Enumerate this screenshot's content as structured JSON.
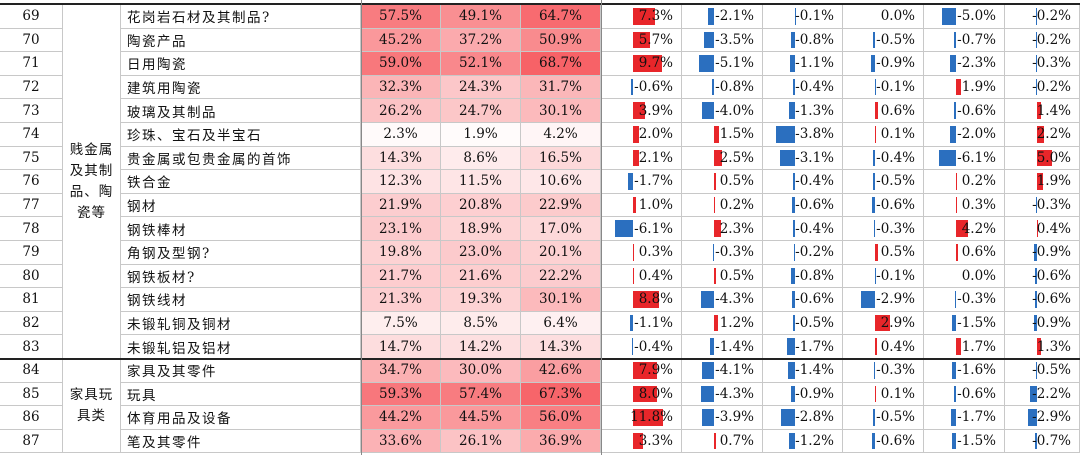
{
  "colors": {
    "pos": "#e8262a",
    "neg": "#2b6fbf"
  },
  "categories": [
    {
      "label": "贱金属及其制品、陶瓷等",
      "first_row": 0,
      "row_count": 15
    },
    {
      "label": "家具玩具类",
      "first_row": 15,
      "row_count": 4
    }
  ],
  "rows": [
    {
      "idx": "69",
      "name": "花岗岩石材及其制品?",
      "p1": "57.5%",
      "p2": "49.1%",
      "p3": "64.7%",
      "c": [
        "7.3%",
        "-2.1%",
        "-0.1%",
        "0.0%",
        "-5.0%",
        "-0.2%"
      ]
    },
    {
      "idx": "70",
      "name": "陶瓷产品",
      "p1": "45.2%",
      "p2": "37.2%",
      "p3": "50.9%",
      "c": [
        "5.7%",
        "-3.5%",
        "-0.8%",
        "-0.5%",
        "-0.7%",
        "-0.2%"
      ]
    },
    {
      "idx": "71",
      "name": "日用陶瓷",
      "p1": "59.0%",
      "p2": "52.1%",
      "p3": "68.7%",
      "c": [
        "9.7%",
        "-5.1%",
        "-1.1%",
        "-0.9%",
        "-2.3%",
        "-0.3%"
      ]
    },
    {
      "idx": "72",
      "name": "建筑用陶瓷",
      "p1": "32.3%",
      "p2": "24.3%",
      "p3": "31.7%",
      "c": [
        "-0.6%",
        "-0.8%",
        "-0.4%",
        "-0.1%",
        "1.9%",
        "-0.2%"
      ]
    },
    {
      "idx": "73",
      "name": "玻璃及其制品",
      "p1": "26.2%",
      "p2": "24.7%",
      "p3": "30.1%",
      "c": [
        "3.9%",
        "-4.0%",
        "-1.3%",
        "0.6%",
        "-0.6%",
        "1.4%"
      ]
    },
    {
      "idx": "74",
      "name": "珍珠、宝石及半宝石",
      "p1": "2.3%",
      "p2": "1.9%",
      "p3": "4.2%",
      "c": [
        "2.0%",
        "1.5%",
        "-3.8%",
        "0.1%",
        "-2.0%",
        "2.2%"
      ]
    },
    {
      "idx": "75",
      "name": "贵金属或包贵金属的首饰",
      "p1": "14.3%",
      "p2": "8.6%",
      "p3": "16.5%",
      "c": [
        "2.1%",
        "2.5%",
        "-3.1%",
        "-0.4%",
        "-6.1%",
        "5.0%"
      ]
    },
    {
      "idx": "76",
      "name": "铁合金",
      "p1": "12.3%",
      "p2": "11.5%",
      "p3": "10.6%",
      "c": [
        "-1.7%",
        "0.5%",
        "-0.4%",
        "-0.5%",
        "0.2%",
        "1.9%"
      ]
    },
    {
      "idx": "77",
      "name": "钢材",
      "p1": "21.9%",
      "p2": "20.8%",
      "p3": "22.9%",
      "c": [
        "1.0%",
        "0.2%",
        "-0.6%",
        "-0.6%",
        "0.3%",
        "-0.3%"
      ]
    },
    {
      "idx": "78",
      "name": "钢铁棒材",
      "p1": "23.1%",
      "p2": "18.9%",
      "p3": "17.0%",
      "c": [
        "-6.1%",
        "2.3%",
        "-0.4%",
        "-0.3%",
        "4.2%",
        "0.4%"
      ]
    },
    {
      "idx": "79",
      "name": "角钢及型钢?",
      "p1": "19.8%",
      "p2": "23.0%",
      "p3": "20.1%",
      "c": [
        "0.3%",
        "-0.3%",
        "-0.2%",
        "0.5%",
        "0.6%",
        "-0.9%"
      ]
    },
    {
      "idx": "80",
      "name": "钢铁板材?",
      "p1": "21.7%",
      "p2": "21.6%",
      "p3": "22.2%",
      "c": [
        "0.4%",
        "0.5%",
        "-0.8%",
        "-0.1%",
        "0.0%",
        "-0.6%"
      ]
    },
    {
      "idx": "81",
      "name": "钢铁线材",
      "p1": "21.3%",
      "p2": "19.3%",
      "p3": "30.1%",
      "c": [
        "8.8%",
        "-4.3%",
        "-0.6%",
        "-2.9%",
        "-0.3%",
        "-0.6%"
      ]
    },
    {
      "idx": "82",
      "name": "未锻轧铜及铜材",
      "p1": "7.5%",
      "p2": "8.5%",
      "p3": "6.4%",
      "c": [
        "-1.1%",
        "1.2%",
        "-0.5%",
        "2.9%",
        "-1.5%",
        "-0.9%"
      ]
    },
    {
      "idx": "83",
      "name": "未锻轧铝及铝材",
      "p1": "14.7%",
      "p2": "14.2%",
      "p3": "14.3%",
      "c": [
        "-0.4%",
        "-1.4%",
        "-1.7%",
        "0.4%",
        "1.7%",
        "1.3%"
      ]
    },
    {
      "idx": "84",
      "name": "家具及其零件",
      "p1": "34.7%",
      "p2": "30.0%",
      "p3": "42.6%",
      "c": [
        "7.9%",
        "-4.1%",
        "-1.4%",
        "-0.3%",
        "-1.6%",
        "-0.5%"
      ]
    },
    {
      "idx": "85",
      "name": "玩具",
      "p1": "59.3%",
      "p2": "57.4%",
      "p3": "67.3%",
      "c": [
        "8.0%",
        "-4.3%",
        "-0.9%",
        "0.1%",
        "-0.6%",
        "-2.2%"
      ]
    },
    {
      "idx": "86",
      "name": "体育用品及设备",
      "p1": "44.2%",
      "p2": "44.5%",
      "p3": "56.0%",
      "c": [
        "11.8%",
        "-3.9%",
        "-2.8%",
        "-0.5%",
        "-1.7%",
        "-2.9%"
      ]
    },
    {
      "idx": "87",
      "name": "笔及其零件",
      "p1": "33.6%",
      "p2": "26.1%",
      "p3": "36.9%",
      "c": [
        "3.3%",
        "0.7%",
        "-1.2%",
        "-0.6%",
        "-1.5%",
        "-0.7%"
      ]
    }
  ]
}
